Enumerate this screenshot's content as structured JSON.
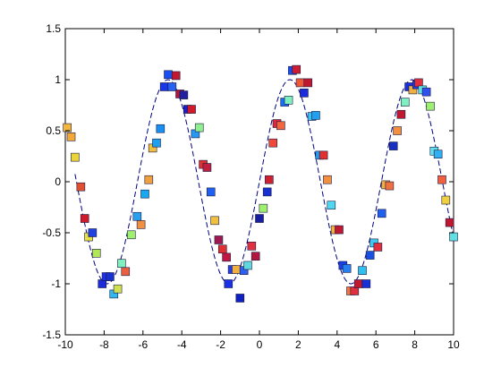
{
  "chart_data": {
    "type": "scatter",
    "title": "",
    "xlabel": "",
    "ylabel": "",
    "xlim": [
      -10,
      10
    ],
    "ylim": [
      -1.5,
      1.5
    ],
    "xticks": [
      "-10",
      "-8",
      "-6",
      "-4",
      "-2",
      "0",
      "2",
      "4",
      "6",
      "8",
      "10"
    ],
    "yticks": [
      "1.5",
      "1",
      "0.5",
      "0",
      "-0.5",
      "-1",
      "-1.5"
    ],
    "grid": false,
    "legend": "none",
    "line": {
      "style": "dashed",
      "color": "#000080",
      "function": "sin(x)",
      "x_from": -9.5,
      "x_to": 10,
      "samples": 400
    },
    "points": [
      {
        "x": -9.9,
        "y": 0.53,
        "color": "#f4b63c"
      },
      {
        "x": -9.7,
        "y": 0.44,
        "color": "#f2a93a"
      },
      {
        "x": -9.5,
        "y": 0.24,
        "color": "#e9d53a"
      },
      {
        "x": -9.2,
        "y": -0.05,
        "color": "#e05030"
      },
      {
        "x": -9.0,
        "y": -0.36,
        "color": "#d01c2a"
      },
      {
        "x": -8.8,
        "y": -0.54,
        "color": "#e6e040"
      },
      {
        "x": -8.6,
        "y": -0.5,
        "color": "#2040e0"
      },
      {
        "x": -8.4,
        "y": -0.7,
        "color": "#b0e858"
      },
      {
        "x": -8.1,
        "y": -1.0,
        "color": "#1c2cd8"
      },
      {
        "x": -7.9,
        "y": -0.93,
        "color": "#2030e4"
      },
      {
        "x": -7.7,
        "y": -0.93,
        "color": "#1830d0"
      },
      {
        "x": -7.5,
        "y": -1.1,
        "color": "#30b8f0"
      },
      {
        "x": -7.3,
        "y": -1.05,
        "color": "#d0e050"
      },
      {
        "x": -7.1,
        "y": -0.8,
        "color": "#80f0c0"
      },
      {
        "x": -6.9,
        "y": -0.88,
        "color": "#e86040"
      },
      {
        "x": -6.6,
        "y": -0.52,
        "color": "#a0f070"
      },
      {
        "x": -6.3,
        "y": -0.34,
        "color": "#28a0f0"
      },
      {
        "x": -6.1,
        "y": -0.42,
        "color": "#f09040"
      },
      {
        "x": -5.9,
        "y": -0.12,
        "color": "#18a8f0"
      },
      {
        "x": -5.7,
        "y": 0.02,
        "color": "#f0a040"
      },
      {
        "x": -5.5,
        "y": 0.33,
        "color": "#f0c040"
      },
      {
        "x": -5.3,
        "y": 0.38,
        "color": "#1ca0f0"
      },
      {
        "x": -5.1,
        "y": 0.52,
        "color": "#1890f0"
      },
      {
        "x": -4.9,
        "y": 0.93,
        "color": "#1838e8"
      },
      {
        "x": -4.7,
        "y": 1.05,
        "color": "#1850f0"
      },
      {
        "x": -4.5,
        "y": 0.93,
        "color": "#2860f0"
      },
      {
        "x": -4.3,
        "y": 1.04,
        "color": "#c01830"
      },
      {
        "x": -4.1,
        "y": 0.86,
        "color": "#b01838"
      },
      {
        "x": -3.9,
        "y": 0.85,
        "color": "#2020a0"
      },
      {
        "x": -3.7,
        "y": 0.71,
        "color": "#1c1cd0"
      },
      {
        "x": -3.5,
        "y": 0.71,
        "color": "#d01c2a"
      },
      {
        "x": -3.3,
        "y": 0.47,
        "color": "#2898f0"
      },
      {
        "x": -3.1,
        "y": 0.53,
        "color": "#90f090"
      },
      {
        "x": -2.9,
        "y": 0.17,
        "color": "#e03030"
      },
      {
        "x": -2.7,
        "y": 0.14,
        "color": "#c02040"
      },
      {
        "x": -2.5,
        "y": -0.1,
        "color": "#2060f0"
      },
      {
        "x": -2.3,
        "y": -0.38,
        "color": "#f0c040"
      },
      {
        "x": -2.1,
        "y": -0.57,
        "color": "#a01850"
      },
      {
        "x": -1.9,
        "y": -0.66,
        "color": "#e03030"
      },
      {
        "x": -1.7,
        "y": -0.74,
        "color": "#c01840"
      },
      {
        "x": -1.6,
        "y": -1.0,
        "color": "#1830e8"
      },
      {
        "x": -1.4,
        "y": -0.86,
        "color": "#2040f0"
      },
      {
        "x": -1.2,
        "y": -0.86,
        "color": "#f0b040"
      },
      {
        "x": -1.0,
        "y": -1.14,
        "color": "#1020c0"
      },
      {
        "x": -0.8,
        "y": -0.87,
        "color": "#3060f0"
      },
      {
        "x": -0.6,
        "y": -0.82,
        "color": "#60d8e0"
      },
      {
        "x": -0.4,
        "y": -0.63,
        "color": "#e03040"
      },
      {
        "x": -0.2,
        "y": -0.73,
        "color": "#b01840"
      },
      {
        "x": 0.0,
        "y": -0.36,
        "color": "#1820a0"
      },
      {
        "x": 0.2,
        "y": -0.26,
        "color": "#a0f070"
      },
      {
        "x": 0.4,
        "y": -0.1,
        "color": "#1830d0"
      },
      {
        "x": 0.5,
        "y": 0.02,
        "color": "#d02030"
      },
      {
        "x": 0.7,
        "y": 0.38,
        "color": "#f04838"
      },
      {
        "x": 0.9,
        "y": 0.57,
        "color": "#e02838"
      },
      {
        "x": 1.1,
        "y": 0.55,
        "color": "#f06840"
      },
      {
        "x": 1.3,
        "y": 0.78,
        "color": "#1870f0"
      },
      {
        "x": 1.5,
        "y": 0.8,
        "color": "#80f0c0"
      },
      {
        "x": 1.7,
        "y": 1.09,
        "color": "#1850f0"
      },
      {
        "x": 1.9,
        "y": 1.1,
        "color": "#d01c30"
      },
      {
        "x": 2.1,
        "y": 0.97,
        "color": "#f05838"
      },
      {
        "x": 2.3,
        "y": 0.87,
        "color": "#1c2cd8"
      },
      {
        "x": 2.5,
        "y": 0.97,
        "color": "#c01830"
      },
      {
        "x": 2.7,
        "y": 0.64,
        "color": "#40c0f0"
      },
      {
        "x": 2.9,
        "y": 0.65,
        "color": "#20a0f0"
      },
      {
        "x": 3.1,
        "y": 0.26,
        "color": "#20a0f0"
      },
      {
        "x": 3.3,
        "y": 0.26,
        "color": "#e03030"
      },
      {
        "x": 3.5,
        "y": 0.02,
        "color": "#f09040"
      },
      {
        "x": 3.7,
        "y": -0.23,
        "color": "#50d8f0"
      },
      {
        "x": 3.9,
        "y": -0.47,
        "color": "#f0b040"
      },
      {
        "x": 4.1,
        "y": -0.47,
        "color": "#c01830"
      },
      {
        "x": 4.3,
        "y": -0.82,
        "color": "#1840e8"
      },
      {
        "x": 4.5,
        "y": -0.85,
        "color": "#2880f0"
      },
      {
        "x": 4.7,
        "y": -1.07,
        "color": "#f07840"
      },
      {
        "x": 4.9,
        "y": -1.07,
        "color": "#e03040"
      },
      {
        "x": 5.1,
        "y": -1.0,
        "color": "#c01830"
      },
      {
        "x": 5.3,
        "y": -0.87,
        "color": "#30c0f0"
      },
      {
        "x": 5.5,
        "y": -1.0,
        "color": "#1830d8"
      },
      {
        "x": 5.7,
        "y": -0.72,
        "color": "#1850e0"
      },
      {
        "x": 5.9,
        "y": -0.6,
        "color": "#40c8f0"
      },
      {
        "x": 6.1,
        "y": -0.64,
        "color": "#e03040"
      },
      {
        "x": 6.3,
        "y": -0.31,
        "color": "#2060f0"
      },
      {
        "x": 6.5,
        "y": -0.03,
        "color": "#f0b040"
      },
      {
        "x": 6.7,
        "y": -0.04,
        "color": "#f07040"
      },
      {
        "x": 6.9,
        "y": 0.35,
        "color": "#1830c0"
      },
      {
        "x": 7.1,
        "y": 0.5,
        "color": "#f09040"
      },
      {
        "x": 7.3,
        "y": 0.66,
        "color": "#c01830"
      },
      {
        "x": 7.5,
        "y": 0.78,
        "color": "#80f0c0"
      },
      {
        "x": 7.7,
        "y": 0.93,
        "color": "#1830e0"
      },
      {
        "x": 7.9,
        "y": 0.9,
        "color": "#f0b040"
      },
      {
        "x": 8.1,
        "y": 0.95,
        "color": "#2040f0"
      },
      {
        "x": 8.2,
        "y": 0.97,
        "color": "#e03040"
      },
      {
        "x": 8.4,
        "y": 0.9,
        "color": "#60e0e0"
      },
      {
        "x": 8.6,
        "y": 0.88,
        "color": "#3050f0"
      },
      {
        "x": 8.8,
        "y": 0.74,
        "color": "#a0f070"
      },
      {
        "x": 9.0,
        "y": 0.3,
        "color": "#60e0f0"
      },
      {
        "x": 9.2,
        "y": 0.27,
        "color": "#30b0f0"
      },
      {
        "x": 9.4,
        "y": 0.02,
        "color": "#f06040"
      },
      {
        "x": 9.6,
        "y": -0.18,
        "color": "#f0d040"
      },
      {
        "x": 9.8,
        "y": -0.4,
        "color": "#c01830"
      },
      {
        "x": 10.0,
        "y": -0.54,
        "color": "#60e0e0"
      }
    ]
  }
}
